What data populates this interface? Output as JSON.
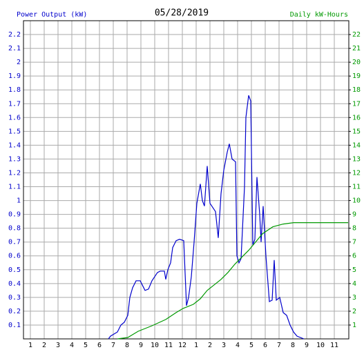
{
  "chart_data": {
    "type": "line",
    "title": "05/28/2019",
    "y_label": "Power Output (kW)",
    "y2_label": "Daily kW-Hours",
    "xlim": [
      0.5,
      24.05
    ],
    "xticks": [
      1,
      2,
      3,
      4,
      5,
      6,
      7,
      8,
      9,
      10,
      11,
      12,
      {
        "value": 13,
        "label": "1"
      },
      {
        "value": 14,
        "label": "2"
      },
      {
        "value": 15,
        "label": "3"
      },
      {
        "value": 16,
        "label": "4"
      },
      {
        "value": 17,
        "label": "5"
      },
      {
        "value": 18,
        "label": "6"
      },
      {
        "value": 19,
        "label": "7"
      },
      {
        "value": 20,
        "label": "8"
      },
      {
        "value": 21,
        "label": "9"
      },
      {
        "value": 22,
        "label": "10"
      },
      {
        "value": 23,
        "label": "11"
      }
    ],
    "ylim": [
      0,
      2.3
    ],
    "yticks": [
      0.1,
      0.2,
      0.3,
      0.4,
      0.5,
      0.6,
      0.7,
      0.8,
      0.9,
      1.0,
      1.1,
      1.2,
      1.3,
      1.4,
      1.5,
      1.6,
      1.7,
      1.8,
      1.9,
      2.0,
      2.1,
      2.2
    ],
    "y2lim": [
      0,
      23
    ],
    "y2ticks": [
      1,
      2,
      3,
      4,
      5,
      6,
      7,
      8,
      9,
      10,
      11,
      12,
      13,
      14,
      15,
      16,
      17,
      18,
      19,
      20,
      21,
      22
    ],
    "grid": true,
    "series": [
      {
        "name": "Power Output (kW)",
        "color": "#0000cc",
        "x": [
          6.65,
          6.8,
          7.3,
          7.55,
          7.8,
          8.05,
          8.2,
          8.4,
          8.65,
          8.95,
          9.15,
          9.3,
          9.55,
          9.8,
          10.2,
          10.4,
          10.7,
          10.8,
          10.95,
          11.15,
          11.3,
          11.55,
          11.8,
          12.1,
          12.3,
          12.45,
          12.65,
          12.85,
          13.05,
          13.3,
          13.45,
          13.6,
          13.8,
          14.0,
          14.2,
          14.4,
          14.6,
          14.8,
          15.0,
          15.25,
          15.4,
          15.6,
          15.85,
          15.95,
          16.1,
          16.25,
          16.5,
          16.6,
          16.8,
          16.95,
          17.1,
          17.25,
          17.4,
          17.6,
          17.7,
          17.85,
          18.05,
          18.3,
          18.5,
          18.65,
          18.8,
          19.05,
          19.3,
          19.55,
          19.8,
          20.05,
          20.3,
          20.8
        ],
        "values": [
          0,
          0.02,
          0.05,
          0.1,
          0.12,
          0.17,
          0.3,
          0.37,
          0.42,
          0.42,
          0.38,
          0.35,
          0.36,
          0.42,
          0.48,
          0.49,
          0.49,
          0.43,
          0.5,
          0.55,
          0.66,
          0.71,
          0.72,
          0.71,
          0.24,
          0.3,
          0.45,
          0.7,
          0.98,
          1.12,
          1.0,
          0.96,
          1.25,
          0.98,
          0.95,
          0.92,
          0.73,
          1.05,
          1.22,
          1.35,
          1.41,
          1.3,
          1.28,
          0.6,
          0.55,
          0.58,
          1.1,
          1.6,
          1.76,
          1.72,
          0.68,
          0.72,
          1.17,
          0.9,
          0.7,
          0.96,
          0.6,
          0.27,
          0.28,
          0.57,
          0.28,
          0.3,
          0.19,
          0.17,
          0.1,
          0.05,
          0.02,
          0
        ]
      },
      {
        "name": "Daily kW-Hours",
        "color": "#009900",
        "axis": "y2",
        "x": [
          7.3,
          8.05,
          8.8,
          9.8,
          10.8,
          11.55,
          12.05,
          12.8,
          13.3,
          13.8,
          14.3,
          14.8,
          15.3,
          15.8,
          16.3,
          16.8,
          17.3,
          17.8,
          18.55,
          19.3,
          20.05,
          24
        ],
        "values": [
          0,
          0.1,
          0.55,
          0.95,
          1.4,
          1.9,
          2.2,
          2.5,
          2.9,
          3.5,
          3.9,
          4.3,
          4.8,
          5.4,
          5.9,
          6.4,
          7.0,
          7.6,
          8.1,
          8.3,
          8.4,
          8.4
        ]
      }
    ]
  }
}
